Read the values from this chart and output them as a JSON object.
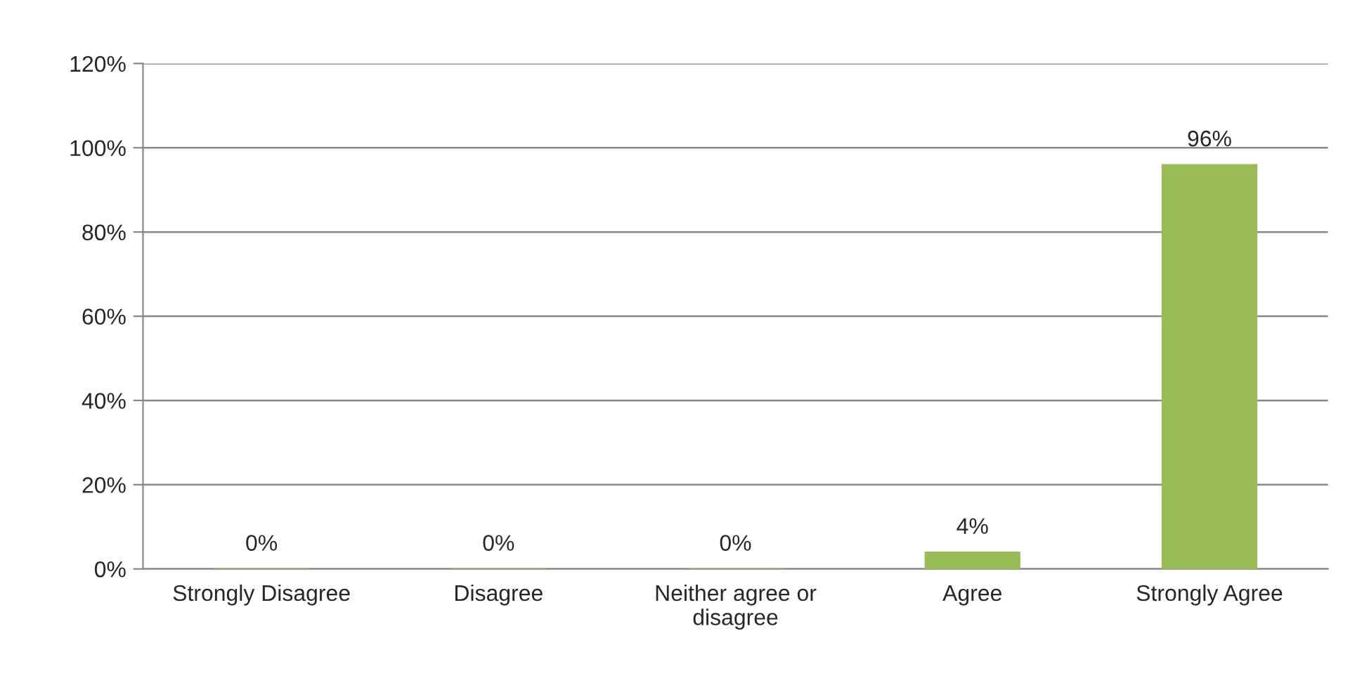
{
  "chart_data": {
    "type": "bar",
    "categories": [
      "Strongly Disagree",
      "Disagree",
      "Neither agree or\ndisagree",
      "Agree",
      "Strongly Agree"
    ],
    "values": [
      0,
      0,
      0,
      4,
      96
    ],
    "value_labels": [
      "0%",
      "0%",
      "0%",
      "4%",
      "96%"
    ],
    "color": "#9bbb59",
    "ylim": [
      0,
      120
    ],
    "yticks": [
      {
        "value": 0,
        "label": "0%"
      },
      {
        "value": 20,
        "label": "20%"
      },
      {
        "value": 40,
        "label": "40%"
      },
      {
        "value": 60,
        "label": "60%"
      },
      {
        "value": 80,
        "label": "80%"
      },
      {
        "value": 100,
        "label": "100%"
      },
      {
        "value": 120,
        "label": "120%"
      }
    ],
    "grid": "y"
  }
}
